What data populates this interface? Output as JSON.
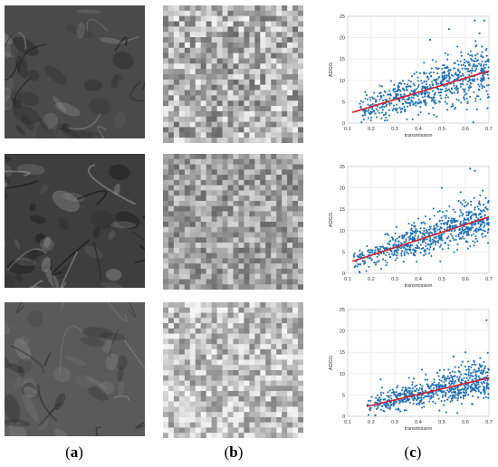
{
  "captions": {
    "a": {
      "open": "(",
      "letter": "a",
      "close": ")"
    },
    "b": {
      "open": "(",
      "letter": "b",
      "close": ")"
    },
    "c": {
      "open": "(",
      "letter": "c",
      "close": ")"
    }
  },
  "rows": [
    {
      "sat_tone": "#4a4a4a",
      "sat_light": "#8a8a8a",
      "sat_dark": "#1c1c1c",
      "mosaic_base": 175,
      "mosaic_spread": 70
    },
    {
      "sat_tone": "#3e3e3e",
      "sat_light": "#9a9a9a",
      "sat_dark": "#0f0f0f",
      "mosaic_base": 160,
      "mosaic_spread": 55
    },
    {
      "sat_tone": "#5a5a5a",
      "sat_light": "#8c8c8c",
      "sat_dark": "#2a2a2a",
      "mosaic_base": 190,
      "mosaic_spread": 60
    }
  ],
  "chart_data": [
    {
      "type": "scatter",
      "xlabel": "transmission",
      "ylabel": "ADGG",
      "xlim": [
        0.1,
        0.7
      ],
      "ylim": [
        0,
        25
      ],
      "xticks": [
        "0.1",
        "0.2",
        "0.3",
        "0.4",
        "0.5",
        "0.6",
        "0.7"
      ],
      "yticks": [
        "0",
        "5",
        "10",
        "15",
        "20",
        "25"
      ],
      "grid": true,
      "point_color": "#1f6fb5",
      "fit_color": "#d11f2a",
      "fit_line": {
        "x": [
          0.12,
          0.7
        ],
        "y": [
          2.5,
          12.2
        ]
      },
      "cloud": {
        "x_min": 0.15,
        "x_max": 0.7,
        "spread": 3.2,
        "n": 700
      },
      "outliers": [
        {
          "x": 0.64,
          "y": 24
        },
        {
          "x": 0.68,
          "y": 24
        },
        {
          "x": 0.53,
          "y": 22
        },
        {
          "x": 0.66,
          "y": 21
        },
        {
          "x": 0.45,
          "y": 19.5
        }
      ]
    },
    {
      "type": "scatter",
      "xlabel": "transmission",
      "ylabel": "ADGG",
      "xlim": [
        0.1,
        0.7
      ],
      "ylim": [
        0,
        25
      ],
      "xticks": [
        "0.1",
        "0.2",
        "0.3",
        "0.4",
        "0.5",
        "0.6",
        "0.7"
      ],
      "yticks": [
        "0",
        "5",
        "10",
        "15",
        "20",
        "25"
      ],
      "grid": true,
      "point_color": "#1f6fb5",
      "fit_color": "#d11f2a",
      "fit_line": {
        "x": [
          0.12,
          0.7
        ],
        "y": [
          2.8,
          13.2
        ]
      },
      "cloud": {
        "x_min": 0.12,
        "x_max": 0.7,
        "spread": 2.6,
        "n": 700
      },
      "outliers": [
        {
          "x": 0.62,
          "y": 24.5
        },
        {
          "x": 0.64,
          "y": 24
        },
        {
          "x": 0.5,
          "y": 20
        },
        {
          "x": 0.58,
          "y": 19
        }
      ]
    },
    {
      "type": "scatter",
      "xlabel": "transmission",
      "ylabel": "ADGG",
      "xlim": [
        0.1,
        0.7
      ],
      "ylim": [
        0,
        25
      ],
      "xticks": [
        "0.1",
        "0.2",
        "0.3",
        "0.4",
        "0.5",
        "0.6",
        "0.7"
      ],
      "yticks": [
        "0",
        "5",
        "10",
        "15",
        "20",
        "25"
      ],
      "grid": true,
      "point_color": "#1f6fb5",
      "fit_color": "#d11f2a",
      "fit_line": {
        "x": [
          0.18,
          0.7
        ],
        "y": [
          2.3,
          9.0
        ]
      },
      "cloud": {
        "x_min": 0.18,
        "x_max": 0.7,
        "spread": 2.1,
        "n": 650
      },
      "outliers": [
        {
          "x": 0.69,
          "y": 22.5
        },
        {
          "x": 0.6,
          "y": 15
        },
        {
          "x": 0.55,
          "y": 14
        }
      ]
    }
  ]
}
